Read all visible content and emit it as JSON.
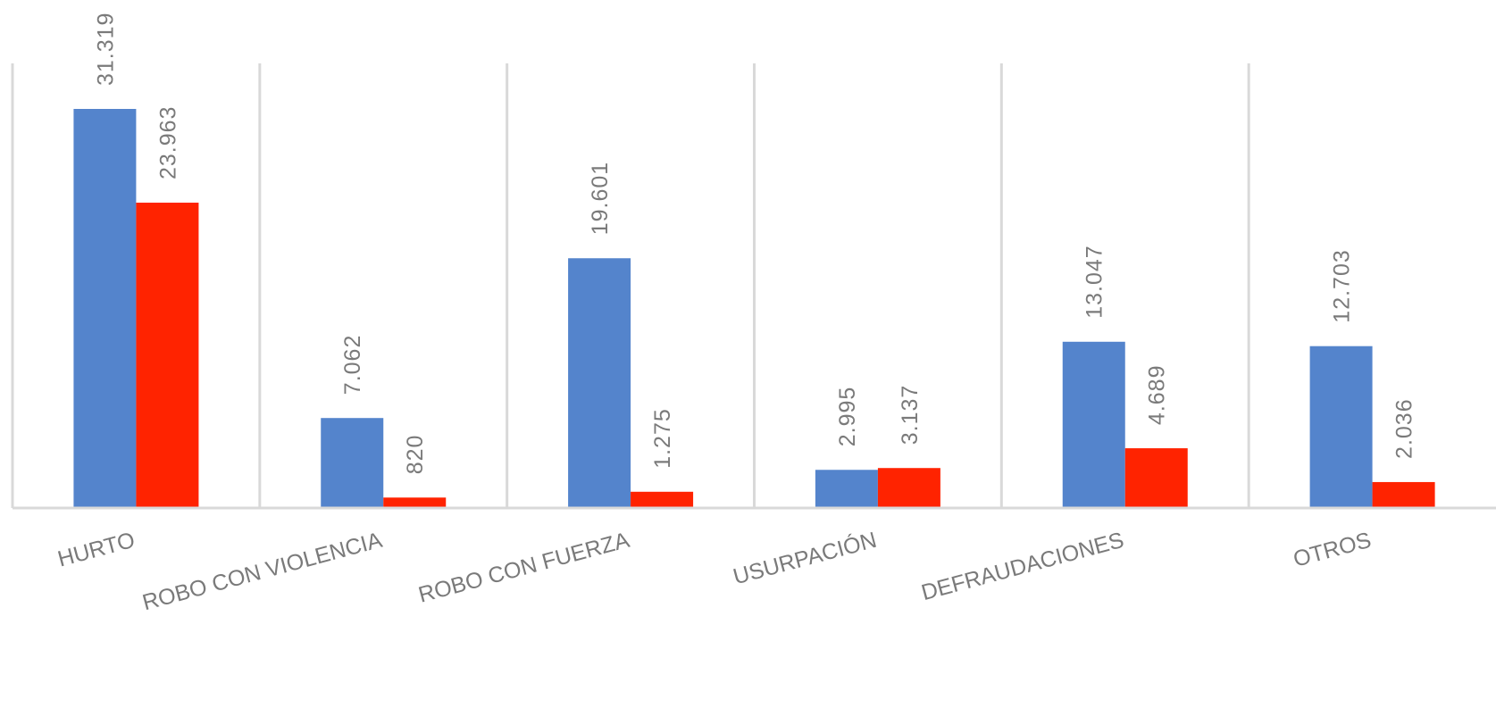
{
  "chart_data": {
    "type": "bar",
    "categories": [
      "HURTO",
      "ROBO CON VIOLENCIA",
      "ROBO CON FUERZA",
      "USURPACIÓN",
      "DEFRAUDACIONES",
      "OTROS"
    ],
    "series": [
      {
        "values": [
          31319,
          7062,
          19601,
          2995,
          13047,
          12703
        ],
        "labels": [
          "31.319",
          "7.062",
          "19.601",
          "2.995",
          "13.047",
          "12.703"
        ],
        "color": "#5484cc"
      },
      {
        "values": [
          23963,
          820,
          1275,
          3137,
          4689,
          2036
        ],
        "labels": [
          "23.963",
          "820",
          "1.275",
          "3.137",
          "4.689",
          "2.036"
        ],
        "color": "#ff2300"
      }
    ],
    "ylim": [
      0,
      40000
    ],
    "grid": false,
    "category_separators": true,
    "axis_color": "#d9d9d9",
    "label_color": "#7a7a7a"
  }
}
